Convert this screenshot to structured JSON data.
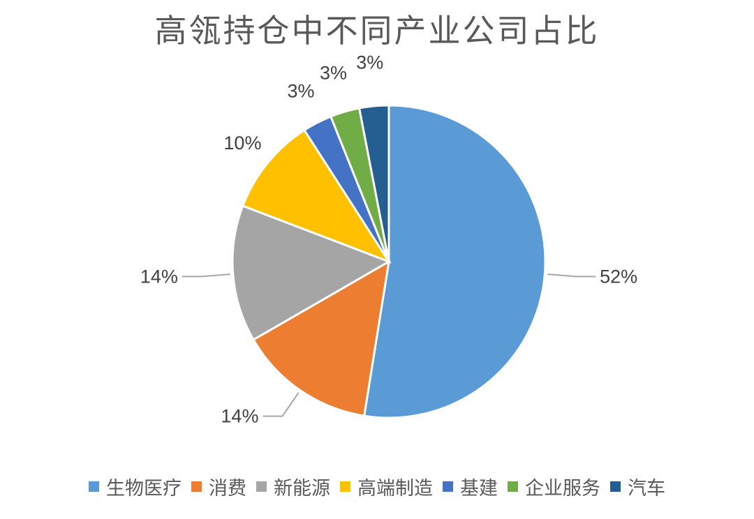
{
  "chart_data": {
    "type": "pie",
    "title": "高瓴持仓中不同产业公司占比",
    "categories": [
      "生物医疗",
      "消费",
      "新能源",
      "高端制造",
      "基建",
      "企业服务",
      "汽车"
    ],
    "values": [
      52,
      14,
      14,
      10,
      3,
      3,
      3
    ],
    "labels": [
      "52%",
      "14%",
      "14%",
      "10%",
      "3%",
      "3%",
      "3%"
    ],
    "colors": [
      "#5B9BD5",
      "#ED7D31",
      "#A5A5A5",
      "#FFC000",
      "#4472C4",
      "#70AD47",
      "#255E91"
    ],
    "legend_position": "bottom",
    "start_angle": "12 o'clock",
    "direction": "clockwise"
  }
}
